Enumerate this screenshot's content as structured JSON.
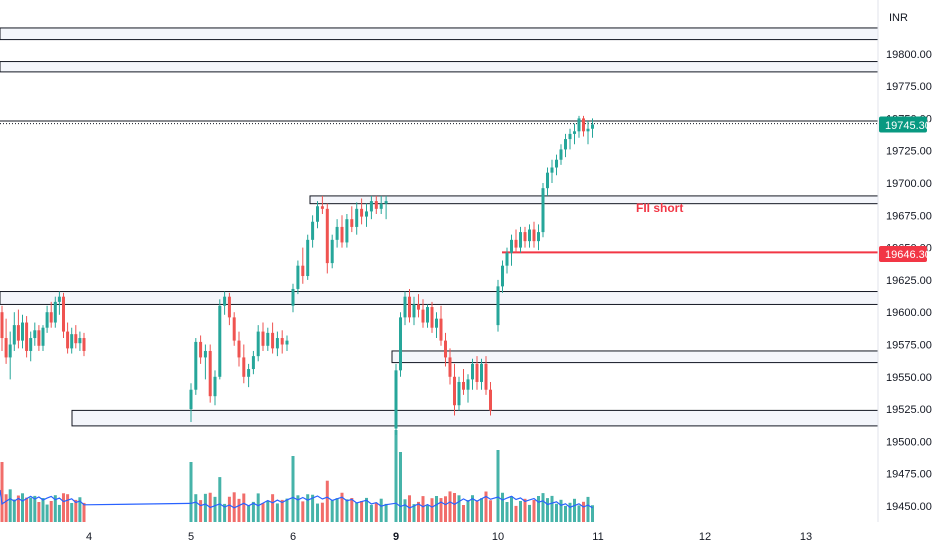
{
  "currency_label": "INR",
  "colors": {
    "up": "#26a69a",
    "down": "#ef5350",
    "ma_line": "#2962ff",
    "zone_fill": "#f0f3fa",
    "border": "#131722",
    "fii_line": "#f23645"
  },
  "price_axis_ticks": [
    "19800.00",
    "19775.00",
    "19750.00",
    "19725.00",
    "19700.00",
    "19675.00",
    "19650.00",
    "19625.00",
    "19600.00",
    "19575.00",
    "19550.00",
    "19525.00",
    "19500.00",
    "19475.00",
    "19450.00"
  ],
  "current_price_tag": "19745.30",
  "fii_price_tag": "19646.30",
  "annotation_text": "FII short",
  "x_axis_labels": [
    {
      "text": "4",
      "bold": false
    },
    {
      "text": "5",
      "bold": false
    },
    {
      "text": "6",
      "bold": false
    },
    {
      "text": "9",
      "bold": true
    },
    {
      "text": "10",
      "bold": false
    },
    {
      "text": "11",
      "bold": false
    },
    {
      "text": "12",
      "bold": false
    },
    {
      "text": "13",
      "bold": false
    }
  ],
  "chart_data": {
    "type": "candlestick",
    "y_unit": "INR",
    "ylim": [
      19442,
      19822
    ],
    "x_labels": [
      "4",
      "5",
      "6",
      "9",
      "10",
      "11",
      "12",
      "13"
    ],
    "zones": [
      {
        "low": 19811,
        "high": 19820
      },
      {
        "low": 19786,
        "high": 19794
      },
      {
        "low": 19684,
        "high": 19690
      },
      {
        "low": 19606,
        "high": 19616
      },
      {
        "low": 19561,
        "high": 19570
      },
      {
        "low": 19512,
        "high": 19524
      }
    ],
    "horizontal_levels": [
      {
        "price": 19748,
        "style": "solid"
      },
      {
        "price": 19746,
        "style": "dotted"
      },
      {
        "price": 19646.3,
        "style": "solid",
        "color": "#f23645",
        "label": "FII short"
      }
    ],
    "last_price": 19745.3,
    "candles": [
      [
        19600,
        19605,
        19570,
        19580
      ],
      [
        19580,
        19595,
        19560,
        19565
      ],
      [
        19565,
        19585,
        19548,
        19575
      ],
      [
        19575,
        19600,
        19570,
        19590
      ],
      [
        19590,
        19602,
        19572,
        19578
      ],
      [
        19578,
        19598,
        19572,
        19592
      ],
      [
        19592,
        19597,
        19565,
        19570
      ],
      [
        19570,
        19585,
        19562,
        19580
      ],
      [
        19580,
        19592,
        19574,
        19586
      ],
      [
        19586,
        19590,
        19570,
        19574
      ],
      [
        19574,
        19590,
        19570,
        19588
      ],
      [
        19588,
        19605,
        19584,
        19600
      ],
      [
        19600,
        19608,
        19588,
        19592
      ],
      [
        19592,
        19612,
        19588,
        19608
      ],
      [
        19608,
        19616,
        19598,
        19612
      ],
      [
        19612,
        19615,
        19580,
        19585
      ],
      [
        19585,
        19592,
        19568,
        19572
      ],
      [
        19572,
        19588,
        19568,
        19583
      ],
      [
        19583,
        19590,
        19572,
        19576
      ],
      [
        19576,
        19585,
        19570,
        19580
      ],
      [
        19580,
        19584,
        19566,
        19570
      ],
      [
        19525,
        19545,
        19515,
        19540
      ],
      [
        19540,
        19580,
        19536,
        19577
      ],
      [
        19577,
        19582,
        19560,
        19565
      ],
      [
        19565,
        19575,
        19548,
        19570
      ],
      [
        19570,
        19575,
        19530,
        19535
      ],
      [
        19535,
        19555,
        19528,
        19550
      ],
      [
        19550,
        19610,
        19548,
        19605
      ],
      [
        19605,
        19616,
        19598,
        19612
      ],
      [
        19612,
        19615,
        19590,
        19596
      ],
      [
        19596,
        19600,
        19574,
        19578
      ],
      [
        19578,
        19585,
        19558,
        19565
      ],
      [
        19565,
        19575,
        19545,
        19550
      ],
      [
        19550,
        19560,
        19542,
        19556
      ],
      [
        19556,
        19570,
        19552,
        19566
      ],
      [
        19566,
        19590,
        19562,
        19585
      ],
      [
        19585,
        19592,
        19570,
        19574
      ],
      [
        19574,
        19588,
        19570,
        19584
      ],
      [
        19584,
        19592,
        19568,
        19572
      ],
      [
        19572,
        19585,
        19566,
        19580
      ],
      [
        19580,
        19586,
        19568,
        19575
      ],
      [
        19575,
        19582,
        19570,
        19578
      ],
      [
        19605,
        19622,
        19600,
        19618
      ],
      [
        19618,
        19640,
        19614,
        19636
      ],
      [
        19636,
        19650,
        19622,
        19628
      ],
      [
        19628,
        19660,
        19625,
        19656
      ],
      [
        19656,
        19675,
        19650,
        19670
      ],
      [
        19670,
        19686,
        19665,
        19682
      ],
      [
        19682,
        19690,
        19676,
        19680
      ],
      [
        19680,
        19684,
        19630,
        19638
      ],
      [
        19638,
        19660,
        19634,
        19656
      ],
      [
        19656,
        19672,
        19650,
        19666
      ],
      [
        19666,
        19675,
        19650,
        19654
      ],
      [
        19654,
        19676,
        19650,
        19672
      ],
      [
        19672,
        19682,
        19662,
        19666
      ],
      [
        19666,
        19685,
        19660,
        19680
      ],
      [
        19680,
        19688,
        19668,
        19674
      ],
      [
        19674,
        19684,
        19666,
        19678
      ],
      [
        19678,
        19690,
        19672,
        19686
      ],
      [
        19686,
        19690,
        19676,
        19680
      ],
      [
        19680,
        19690,
        19676,
        19684
      ],
      [
        19684,
        19690,
        19672,
        19686
      ],
      [
        19510,
        19560,
        19505,
        19555
      ],
      [
        19555,
        19600,
        19550,
        19596
      ],
      [
        19596,
        19616,
        19590,
        19612
      ],
      [
        19612,
        19618,
        19592,
        19596
      ],
      [
        19596,
        19612,
        19590,
        19606
      ],
      [
        19606,
        19614,
        19596,
        19602
      ],
      [
        19602,
        19610,
        19588,
        19592
      ],
      [
        19592,
        19606,
        19588,
        19604
      ],
      [
        19604,
        19608,
        19584,
        19588
      ],
      [
        19588,
        19600,
        19580,
        19595
      ],
      [
        19595,
        19605,
        19574,
        19578
      ],
      [
        19578,
        19584,
        19558,
        19565
      ],
      [
        19565,
        19572,
        19544,
        19550
      ],
      [
        19550,
        19560,
        19520,
        19528
      ],
      [
        19528,
        19550,
        19524,
        19546
      ],
      [
        19546,
        19556,
        19536,
        19540
      ],
      [
        19540,
        19552,
        19530,
        19548
      ],
      [
        19548,
        19564,
        19540,
        19560
      ],
      [
        19560,
        19566,
        19540,
        19546
      ],
      [
        19546,
        19564,
        19540,
        19560
      ],
      [
        19560,
        19566,
        19536,
        19540
      ],
      [
        19540,
        19546,
        19520,
        19524
      ],
      [
        19590,
        19625,
        19585,
        19620
      ],
      [
        19620,
        19640,
        19615,
        19636
      ],
      [
        19636,
        19650,
        19630,
        19646
      ],
      [
        19646,
        19660,
        19636,
        19656
      ],
      [
        19656,
        19664,
        19646,
        19650
      ],
      [
        19650,
        19666,
        19646,
        19662
      ],
      [
        19662,
        19666,
        19650,
        19655
      ],
      [
        19655,
        19668,
        19650,
        19664
      ],
      [
        19664,
        19670,
        19650,
        19655
      ],
      [
        19655,
        19668,
        19648,
        19662
      ],
      [
        19662,
        19700,
        19658,
        19696
      ],
      [
        19696,
        19712,
        19690,
        19708
      ],
      [
        19708,
        19718,
        19700,
        19712
      ],
      [
        19712,
        19722,
        19706,
        19718
      ],
      [
        19718,
        19730,
        19714,
        19726
      ],
      [
        19726,
        19738,
        19720,
        19734
      ],
      [
        19734,
        19742,
        19726,
        19738
      ],
      [
        19738,
        19746,
        19730,
        19740
      ],
      [
        19740,
        19752,
        19735,
        19750
      ],
      [
        19750,
        19752,
        19736,
        19740
      ],
      [
        19740,
        19748,
        19730,
        19742
      ],
      [
        19742,
        19750,
        19735,
        19745.3
      ]
    ],
    "volume_ma_shown": true
  }
}
